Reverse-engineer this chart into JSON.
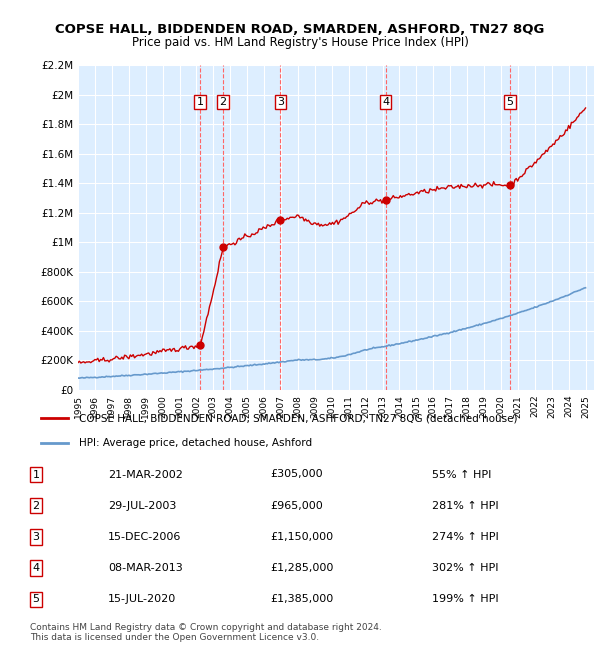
{
  "title": "COPSE HALL, BIDDENDEN ROAD, SMARDEN, ASHFORD, TN27 8QG",
  "subtitle": "Price paid vs. HM Land Registry's House Price Index (HPI)",
  "ylim": [
    0,
    2200000
  ],
  "xlim_start": 1995.0,
  "xlim_end": 2025.5,
  "yticks": [
    0,
    200000,
    400000,
    600000,
    800000,
    1000000,
    1200000,
    1400000,
    1600000,
    1800000,
    2000000,
    2200000
  ],
  "ytick_labels": [
    "£0",
    "£200K",
    "£400K",
    "£600K",
    "£800K",
    "£1M",
    "£1.2M",
    "£1.4M",
    "£1.6M",
    "£1.8M",
    "£2M",
    "£2.2M"
  ],
  "xticks": [
    1995,
    1996,
    1997,
    1998,
    1999,
    2000,
    2001,
    2002,
    2003,
    2004,
    2005,
    2006,
    2007,
    2008,
    2009,
    2010,
    2011,
    2012,
    2013,
    2014,
    2015,
    2016,
    2017,
    2018,
    2019,
    2020,
    2021,
    2022,
    2023,
    2024,
    2025
  ],
  "sale_dates": [
    2002.22,
    2003.57,
    2006.96,
    2013.18,
    2020.54
  ],
  "sale_prices": [
    305000,
    965000,
    1150000,
    1285000,
    1385000
  ],
  "sale_labels": [
    "1",
    "2",
    "3",
    "4",
    "5"
  ],
  "hpi_color": "#6699cc",
  "price_color": "#cc0000",
  "vline_color": "#ff4444",
  "bg_color": "#ddeeff",
  "plot_bg": "#ddeeff",
  "legend_line1": "COPSE HALL, BIDDENDEN ROAD, SMARDEN, ASHFORD, TN27 8QG (detached house)",
  "legend_line2": "HPI: Average price, detached house, Ashford",
  "table_data": [
    [
      "1",
      "21-MAR-2002",
      "£305,000",
      "55% ↑ HPI"
    ],
    [
      "2",
      "29-JUL-2003",
      "£965,000",
      "281% ↑ HPI"
    ],
    [
      "3",
      "15-DEC-2006",
      "£1,150,000",
      "274% ↑ HPI"
    ],
    [
      "4",
      "08-MAR-2013",
      "£1,285,000",
      "302% ↑ HPI"
    ],
    [
      "5",
      "15-JUL-2020",
      "£1,385,000",
      "199% ↑ HPI"
    ]
  ],
  "footnote": "Contains HM Land Registry data © Crown copyright and database right 2024.\nThis data is licensed under the Open Government Licence v3.0."
}
